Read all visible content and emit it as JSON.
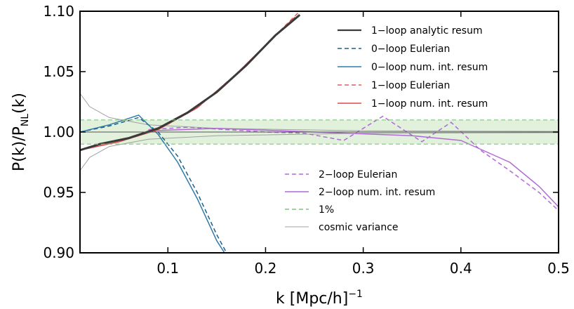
{
  "chart_data": {
    "type": "line",
    "title": "",
    "xlabel": "k [Mpc/h]",
    "xlabel_superscript": "−1",
    "ylabel_main": "P(k)/P",
    "ylabel_sub": "NL",
    "ylabel_tail": "(k)",
    "xlim": [
      0.01,
      0.5
    ],
    "ylim": [
      0.9,
      1.1
    ],
    "x_ticks": [
      {
        "value": 0.1,
        "label": "0.1"
      },
      {
        "value": 0.2,
        "label": "0.2"
      },
      {
        "value": 0.3,
        "label": "0.3"
      },
      {
        "value": 0.4,
        "label": "0.4"
      },
      {
        "value": 0.5,
        "label": "0.5"
      }
    ],
    "y_ticks": [
      {
        "value": 0.9,
        "label": "0.90"
      },
      {
        "value": 0.95,
        "label": "0.95"
      },
      {
        "value": 1.0,
        "label": "1.00"
      },
      {
        "value": 1.05,
        "label": "1.05"
      },
      {
        "value": 1.1,
        "label": "1.10"
      }
    ],
    "one_percent_band": [
      0.99,
      1.01
    ],
    "series": [
      {
        "key": "loop1_analytic",
        "name": "1−loop analytic resum",
        "color": "#3a3a3a",
        "style": "solid",
        "x": [
          0.01,
          0.03,
          0.06,
          0.09,
          0.12,
          0.15,
          0.18,
          0.21,
          0.235
        ],
        "y": [
          0.985,
          0.99,
          0.995,
          1.003,
          1.016,
          1.033,
          1.055,
          1.08,
          1.097
        ]
      },
      {
        "key": "loop0_euler",
        "name": "0−loop Eulerian",
        "color": "#1f5f85",
        "style": "dashed",
        "x": [
          0.01,
          0.04,
          0.07,
          0.09,
          0.11,
          0.13,
          0.15,
          0.16
        ],
        "y": [
          1.0,
          1.005,
          1.012,
          1.0,
          0.98,
          0.95,
          0.915,
          0.9
        ]
      },
      {
        "key": "loop0_resum",
        "name": "0−loop num. int. resum",
        "color": "#2f7bab",
        "style": "solid",
        "x": [
          0.01,
          0.04,
          0.07,
          0.09,
          0.11,
          0.13,
          0.15,
          0.158
        ],
        "y": [
          1.0,
          1.006,
          1.014,
          0.998,
          0.975,
          0.945,
          0.91,
          0.9
        ]
      },
      {
        "key": "loop1_euler",
        "name": "1−loop Eulerian",
        "color": "#e85a5a",
        "style": "dashed",
        "x": [
          0.01,
          0.05,
          0.09,
          0.13,
          0.17,
          0.21,
          0.235,
          0.26
        ],
        "y": [
          0.985,
          0.992,
          1.002,
          1.02,
          1.048,
          1.08,
          1.1,
          1.1
        ]
      },
      {
        "key": "loop1_resum",
        "name": "1−loop num. int. resum",
        "color": "#e04848",
        "style": "solid",
        "x": [
          0.01,
          0.05,
          0.09,
          0.13,
          0.17,
          0.21,
          0.23
        ],
        "y": [
          0.985,
          0.992,
          1.002,
          1.02,
          1.048,
          1.08,
          1.095
        ]
      },
      {
        "key": "loop2_euler",
        "name": "2−loop Eulerian",
        "color": "#b06ad8",
        "style": "dashed",
        "x": [
          0.08,
          0.12,
          0.2,
          0.24,
          0.28,
          0.32,
          0.36,
          0.39,
          0.42,
          0.45,
          0.48,
          0.5
        ],
        "y": [
          1.002,
          1.004,
          1.0,
          0.999,
          0.993,
          1.013,
          0.992,
          1.008,
          0.985,
          0.968,
          0.95,
          0.935
        ]
      },
      {
        "key": "loop2_resum",
        "name": "2−loop num. int. resum",
        "color": "#b06ad8",
        "style": "solid",
        "x": [
          0.08,
          0.15,
          0.25,
          0.35,
          0.4,
          0.45,
          0.48,
          0.5
        ],
        "y": [
          1.001,
          1.003,
          1.0,
          0.997,
          0.993,
          0.975,
          0.955,
          0.938
        ]
      },
      {
        "key": "one_percent",
        "name": "1%",
        "color": "#7fc77f",
        "style": "dashed",
        "x": [
          0.01,
          0.5
        ],
        "y": [
          0.99,
          1.01
        ]
      },
      {
        "key": "cosmic_variance",
        "name": "cosmic variance",
        "color": "#a0a0a0",
        "style": "solid",
        "x": [
          0.01,
          0.02,
          0.04,
          0.08,
          0.15,
          0.3,
          0.5
        ],
        "y": [
          0.968,
          0.979,
          0.988,
          0.994,
          0.997,
          0.999,
          0.9995
        ]
      }
    ],
    "legend_upper": [
      "loop1_analytic",
      "loop0_euler",
      "loop0_resum",
      "loop1_euler",
      "loop1_resum"
    ],
    "legend_lower": [
      "loop2_euler",
      "loop2_resum",
      "one_percent",
      "cosmic_variance"
    ]
  }
}
